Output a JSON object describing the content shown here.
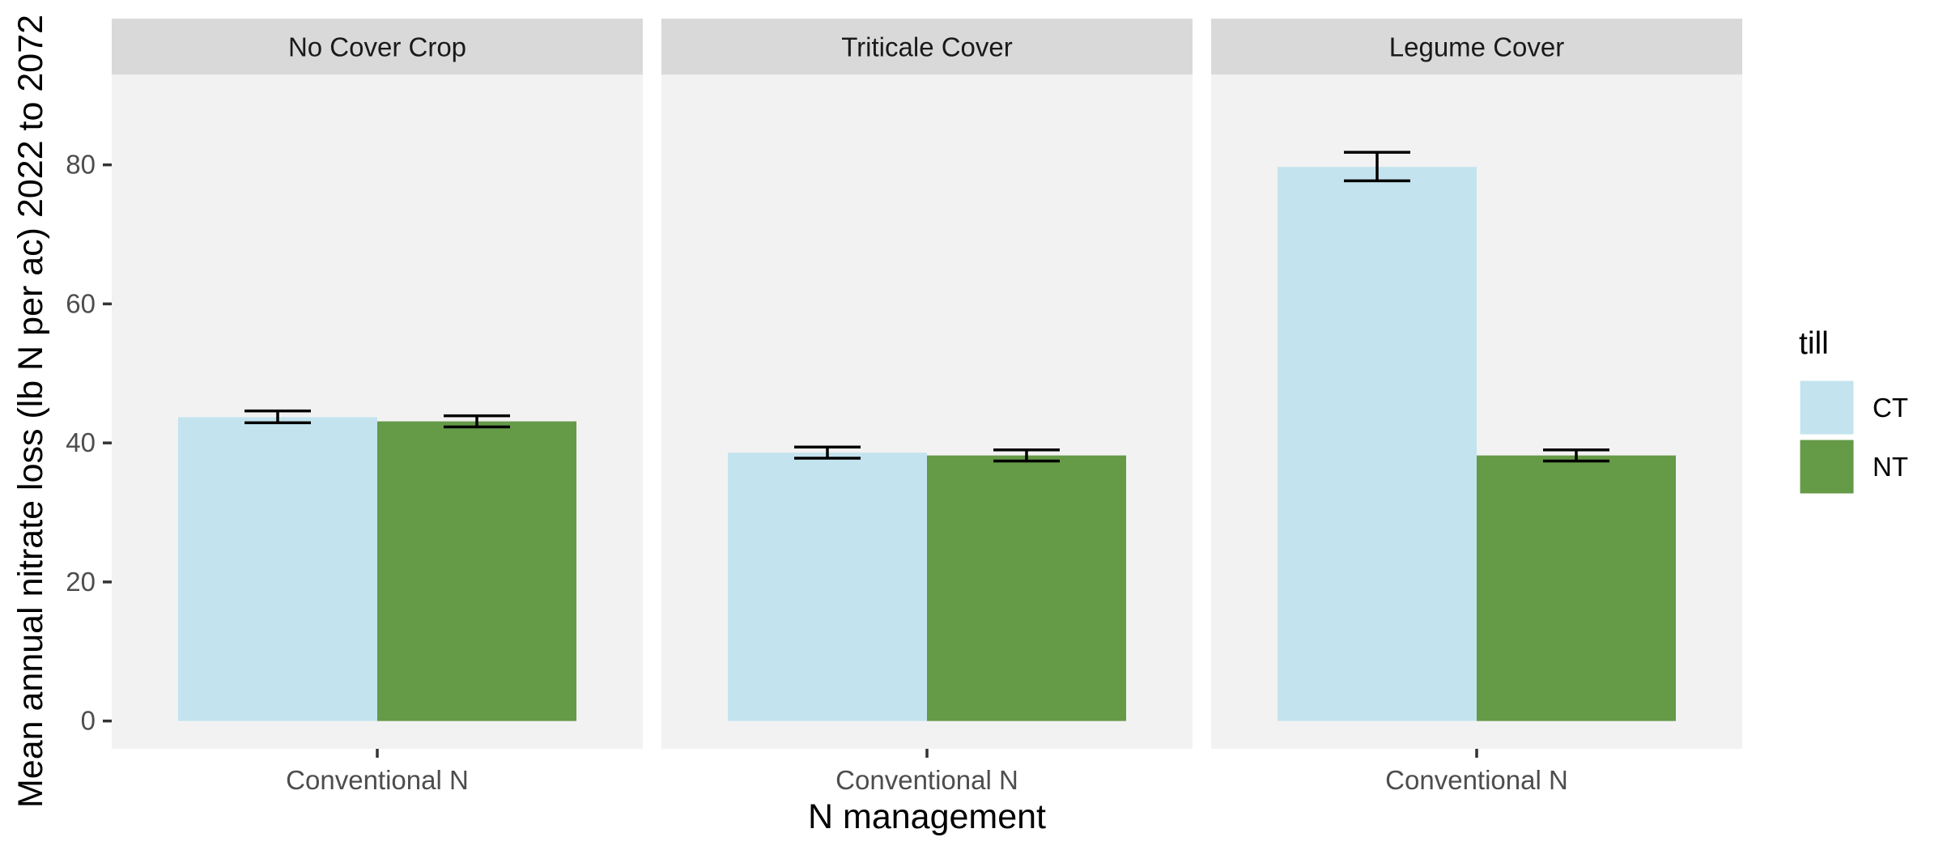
{
  "chart_data": {
    "type": "bar",
    "xlabel": "N management",
    "ylabel": "Mean annual nitrate loss (lb N per ac) 2022 to 2072",
    "ylim": [
      -4,
      93
    ],
    "yticks": [
      0,
      20,
      40,
      60,
      80
    ],
    "grid": false,
    "legend": {
      "title": "till",
      "position": "right",
      "entries": [
        {
          "label": "CT",
          "color": "#c3e4ee"
        },
        {
          "label": "NT",
          "color": "#659a47"
        }
      ]
    },
    "panels": [
      {
        "title": "No Cover Crop",
        "category": "Conventional N",
        "bars": [
          {
            "till": "CT",
            "value": 43.7,
            "err_low": 42.9,
            "err_high": 44.6
          },
          {
            "till": "NT",
            "value": 43.1,
            "err_low": 42.3,
            "err_high": 43.9
          }
        ]
      },
      {
        "title": "Triticale Cover",
        "category": "Conventional N",
        "bars": [
          {
            "till": "CT",
            "value": 38.6,
            "err_low": 37.8,
            "err_high": 39.4
          },
          {
            "till": "NT",
            "value": 38.2,
            "err_low": 37.4,
            "err_high": 39.0
          }
        ]
      },
      {
        "title": "Legume Cover",
        "category": "Conventional N",
        "bars": [
          {
            "till": "CT",
            "value": 79.7,
            "err_low": 77.7,
            "err_high": 81.8
          },
          {
            "till": "NT",
            "value": 38.2,
            "err_low": 37.4,
            "err_high": 39.0
          }
        ]
      }
    ]
  }
}
